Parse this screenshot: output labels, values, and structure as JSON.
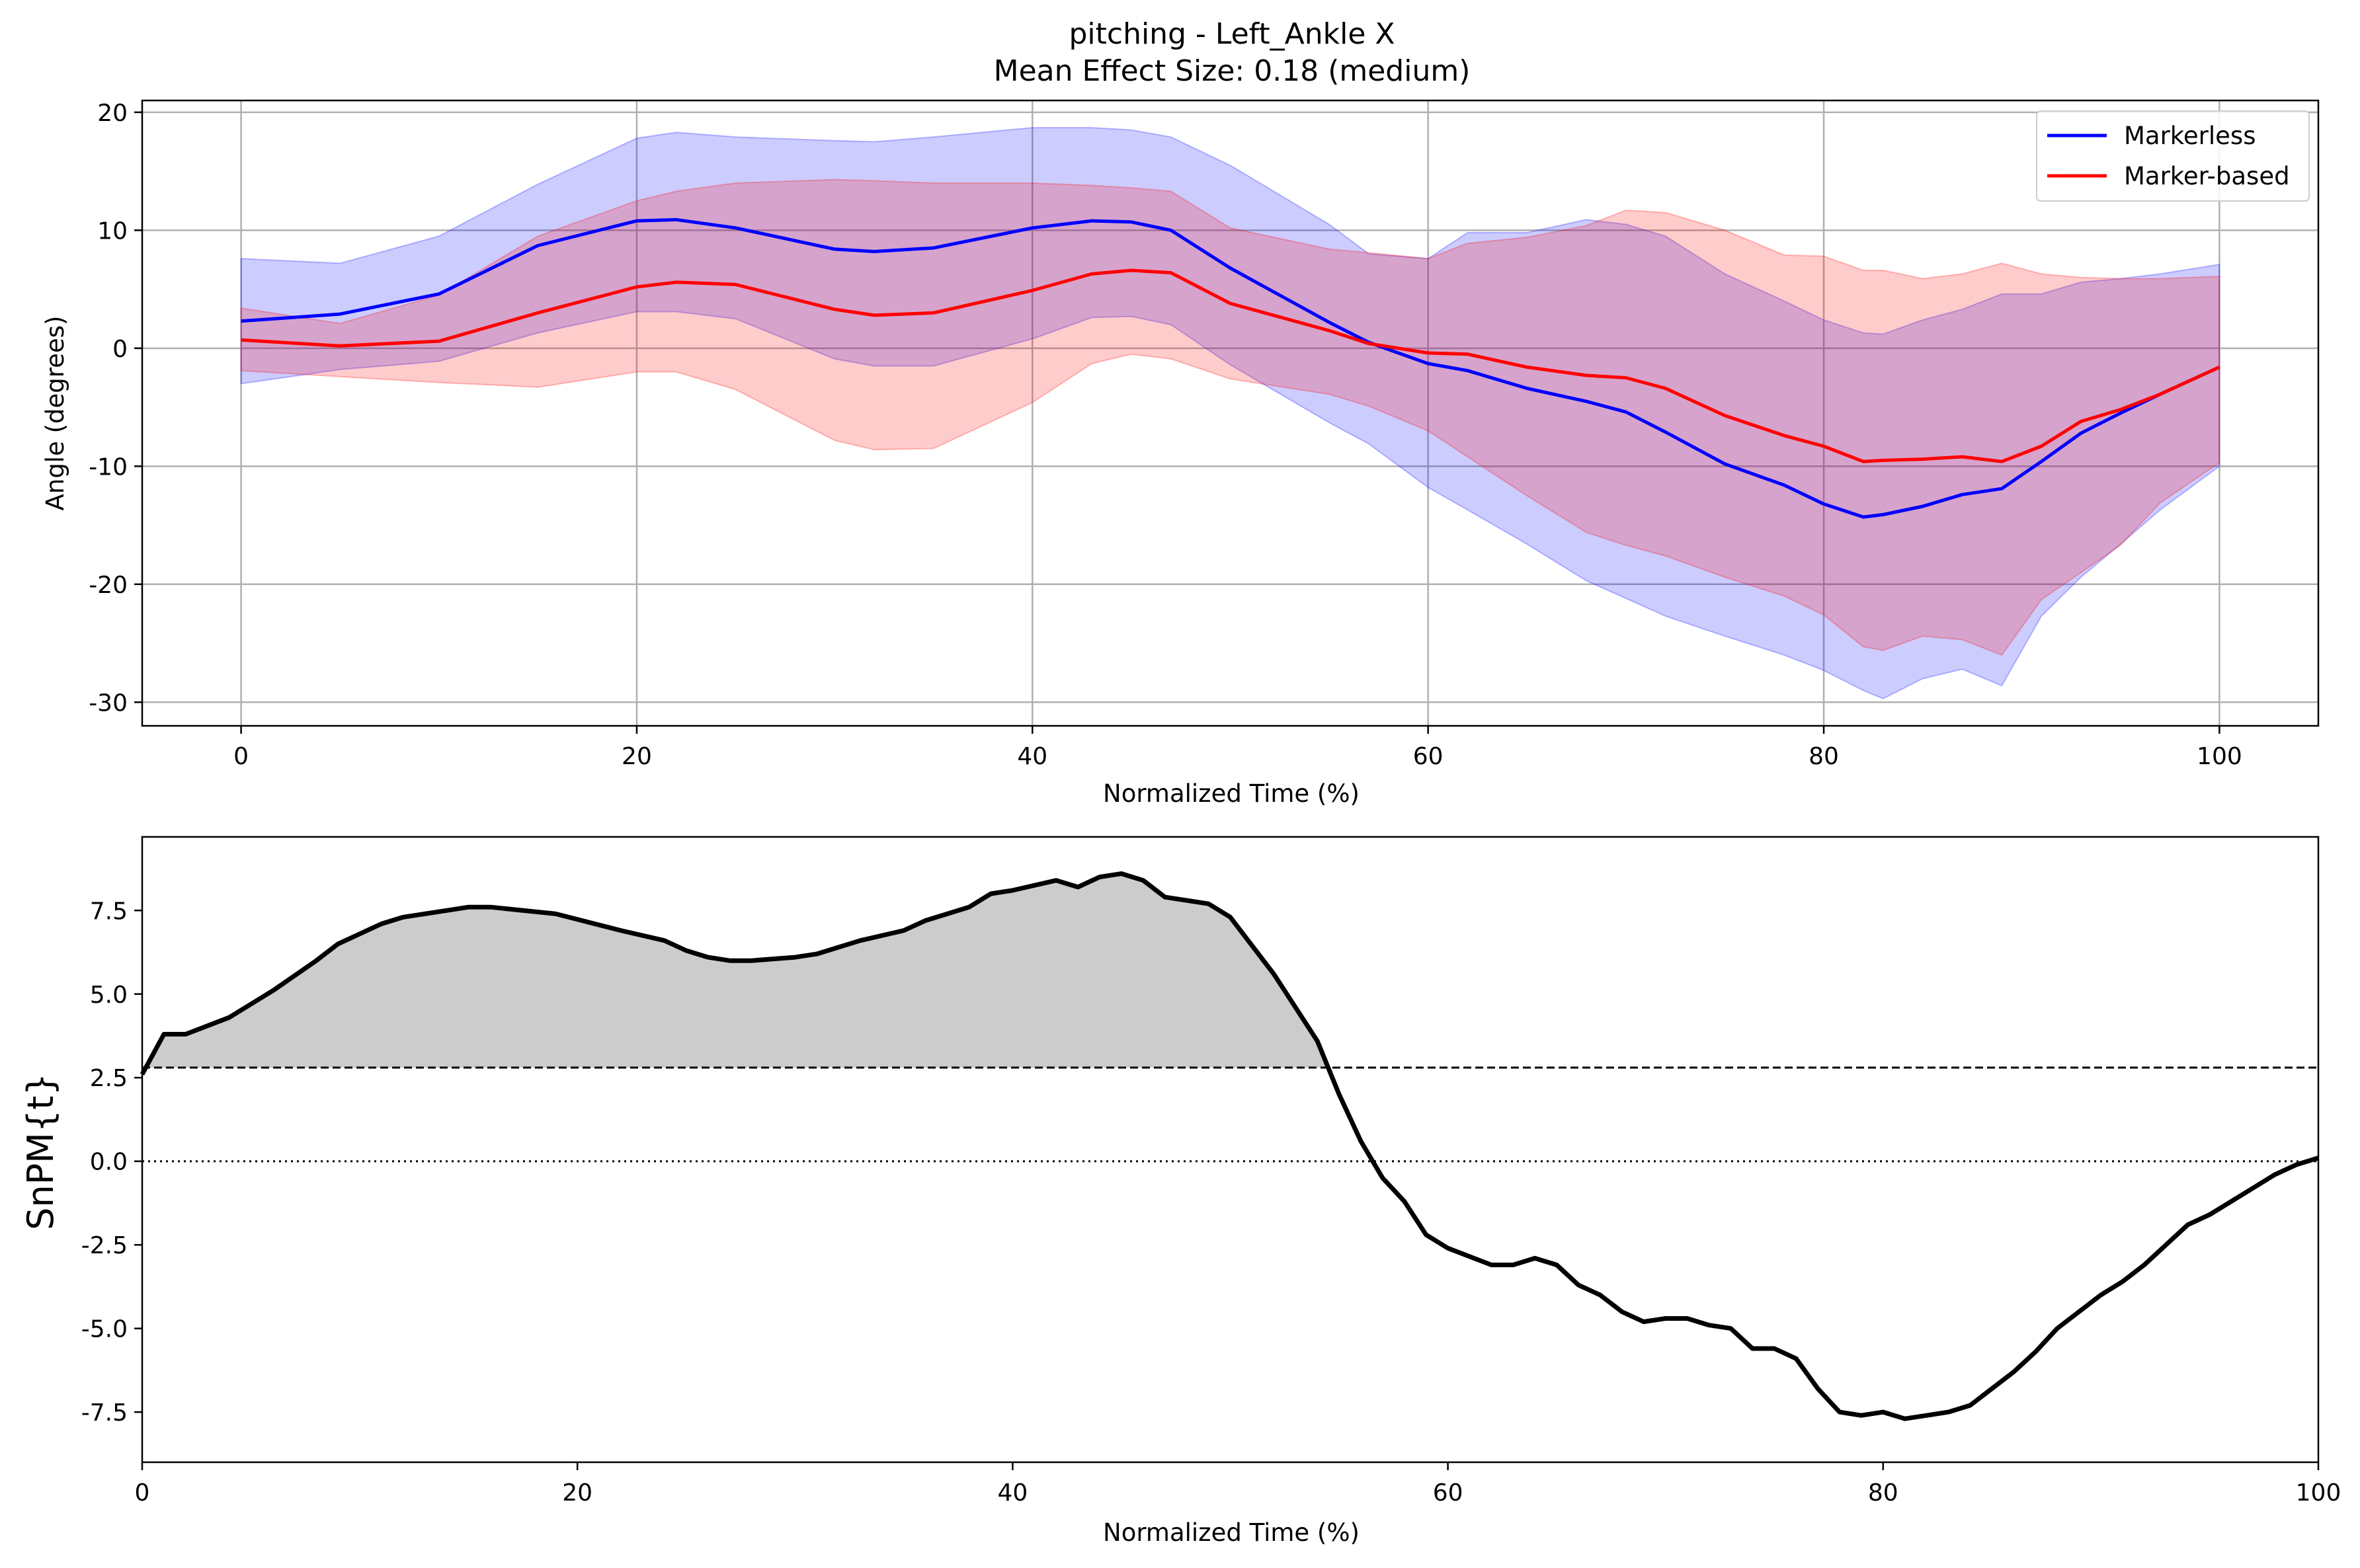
{
  "chart_data": [
    {
      "type": "line",
      "title": "pitching - Left_Ankle X",
      "subtitle": "Mean Effect Size: 0.18 (medium)",
      "xlabel": "Normalized Time (%)",
      "ylabel": "Angle (degrees)",
      "xlim": [
        -5,
        105
      ],
      "ylim": [
        -32,
        21
      ],
      "xticks": [
        0,
        20,
        40,
        60,
        80,
        100
      ],
      "yticks": [
        20,
        10,
        0,
        -10,
        -20,
        -30
      ],
      "grid": true,
      "legend_position": "top-right",
      "x": [
        0,
        5,
        10,
        15,
        20,
        22,
        25,
        30,
        32,
        35,
        40,
        43,
        45,
        47,
        50,
        55,
        57,
        60,
        62,
        65,
        68,
        70,
        72,
        75,
        78,
        80,
        82,
        83,
        85,
        87,
        89,
        91,
        93,
        95,
        97,
        100
      ],
      "series": [
        {
          "name": "Markerless",
          "color": "#0000ff",
          "mean": [
            2.3,
            2.9,
            4.6,
            8.7,
            10.8,
            10.9,
            10.2,
            8.4,
            8.2,
            8.5,
            10.2,
            10.8,
            10.7,
            10.0,
            6.8,
            2.2,
            0.5,
            -1.3,
            -1.9,
            -3.4,
            -4.5,
            -5.4,
            -7.1,
            -9.8,
            -11.6,
            -13.2,
            -14.3,
            -14.1,
            -13.4,
            -12.4,
            -11.9,
            -9.6,
            -7.2,
            -5.5,
            -3.9,
            -1.6
          ],
          "upper": [
            7.6,
            7.2,
            9.5,
            13.9,
            17.8,
            18.3,
            17.9,
            17.6,
            17.5,
            17.9,
            18.7,
            18.7,
            18.5,
            17.9,
            15.5,
            10.5,
            8.0,
            7.6,
            9.8,
            9.8,
            10.9,
            10.5,
            9.5,
            6.3,
            4.0,
            2.4,
            1.3,
            1.2,
            2.4,
            3.3,
            4.6,
            4.6,
            5.6,
            5.9,
            6.3,
            7.1
          ],
          "lower": [
            -3.0,
            -1.8,
            -1.1,
            1.3,
            3.1,
            3.1,
            2.5,
            -0.9,
            -1.5,
            -1.5,
            0.8,
            2.6,
            2.7,
            2.0,
            -1.4,
            -6.3,
            -8.1,
            -11.8,
            -13.7,
            -16.6,
            -19.7,
            -21.2,
            -22.7,
            -24.4,
            -26.0,
            -27.3,
            -29.0,
            -29.7,
            -28.0,
            -27.2,
            -28.6,
            -22.7,
            -19.4,
            -16.6,
            -13.7,
            -10.0
          ]
        },
        {
          "name": "Marker-based",
          "color": "#ff0000",
          "mean": [
            0.7,
            0.2,
            0.6,
            3.0,
            5.2,
            5.6,
            5.4,
            3.3,
            2.8,
            3.0,
            4.9,
            6.3,
            6.6,
            6.4,
            3.8,
            1.5,
            0.4,
            -0.4,
            -0.5,
            -1.6,
            -2.3,
            -2.5,
            -3.4,
            -5.7,
            -7.4,
            -8.3,
            -9.6,
            -9.5,
            -9.4,
            -9.2,
            -9.6,
            -8.3,
            -6.2,
            -5.2,
            -3.9,
            -1.6
          ],
          "upper": [
            3.4,
            2.1,
            4.5,
            9.5,
            12.5,
            13.3,
            14.0,
            14.3,
            14.2,
            14.0,
            14.0,
            13.8,
            13.6,
            13.3,
            10.2,
            8.4,
            8.1,
            7.6,
            8.9,
            9.4,
            10.4,
            11.7,
            11.5,
            10.0,
            7.9,
            7.8,
            6.6,
            6.6,
            5.9,
            6.3,
            7.2,
            6.3,
            6.0,
            5.9,
            5.9,
            6.1
          ],
          "lower": [
            -1.9,
            -2.4,
            -2.9,
            -3.3,
            -2.0,
            -2.0,
            -3.5,
            -7.8,
            -8.6,
            -8.5,
            -4.6,
            -1.3,
            -0.5,
            -0.9,
            -2.6,
            -3.9,
            -4.9,
            -7.0,
            -9.2,
            -12.5,
            -15.6,
            -16.7,
            -17.6,
            -19.4,
            -21.0,
            -22.6,
            -25.3,
            -25.6,
            -24.4,
            -24.7,
            -26.0,
            -21.3,
            -19.0,
            -16.7,
            -13.1,
            -9.7
          ]
        }
      ]
    },
    {
      "type": "line",
      "xlabel": "Normalized Time (%)",
      "ylabel": "SnPM{t}",
      "xlim": [
        0,
        100
      ],
      "ylim": [
        -9.0,
        9.7
      ],
      "xticks": [
        0,
        20,
        40,
        60,
        80,
        100
      ],
      "yticks": [
        7.5,
        5.0,
        2.5,
        0.0,
        -2.5,
        -5.0,
        -7.5
      ],
      "threshold": 2.8,
      "zero_line": 0.0,
      "grid": false,
      "x": [
        0,
        1,
        2,
        4,
        6,
        8,
        9,
        11,
        12,
        14,
        15,
        16,
        19,
        22,
        24,
        25,
        26,
        27,
        28,
        30,
        31,
        33,
        35,
        36,
        37,
        38,
        39,
        40,
        42,
        43,
        44,
        45,
        46,
        47,
        49,
        50,
        52,
        54,
        55,
        56,
        57,
        58,
        59,
        60,
        62,
        63,
        64,
        65,
        66,
        67,
        68,
        69,
        70,
        71,
        72,
        73,
        74,
        75,
        76,
        77,
        78,
        79,
        80,
        81,
        82,
        83,
        84,
        85,
        86,
        87,
        88,
        89,
        90,
        91,
        92,
        93,
        94,
        95,
        96,
        97,
        98,
        99,
        100
      ],
      "values": [
        2.6,
        3.8,
        3.8,
        4.3,
        5.1,
        6.0,
        6.5,
        7.1,
        7.3,
        7.5,
        7.6,
        7.6,
        7.4,
        6.9,
        6.6,
        6.3,
        6.1,
        6.0,
        6.0,
        6.1,
        6.2,
        6.6,
        6.9,
        7.2,
        7.4,
        7.6,
        8.0,
        8.1,
        8.4,
        8.2,
        8.5,
        8.6,
        8.4,
        7.9,
        7.7,
        7.3,
        5.6,
        3.6,
        2.0,
        0.6,
        -0.5,
        -1.2,
        -2.2,
        -2.6,
        -3.1,
        -3.1,
        -2.9,
        -3.1,
        -3.7,
        -4.0,
        -4.5,
        -4.8,
        -4.7,
        -4.7,
        -4.9,
        -5.0,
        -5.6,
        -5.6,
        -5.9,
        -6.8,
        -7.5,
        -7.6,
        -7.5,
        -7.7,
        -7.6,
        -7.5,
        -7.3,
        -6.8,
        -6.3,
        -5.7,
        -5.0,
        -4.5,
        -4.0,
        -3.6,
        -3.1,
        -2.5,
        -1.9,
        -1.6,
        -1.2,
        -0.8,
        -0.4,
        -0.1,
        0.1
      ],
      "line_color": "#000000",
      "fill_color": "#cccccc"
    }
  ]
}
